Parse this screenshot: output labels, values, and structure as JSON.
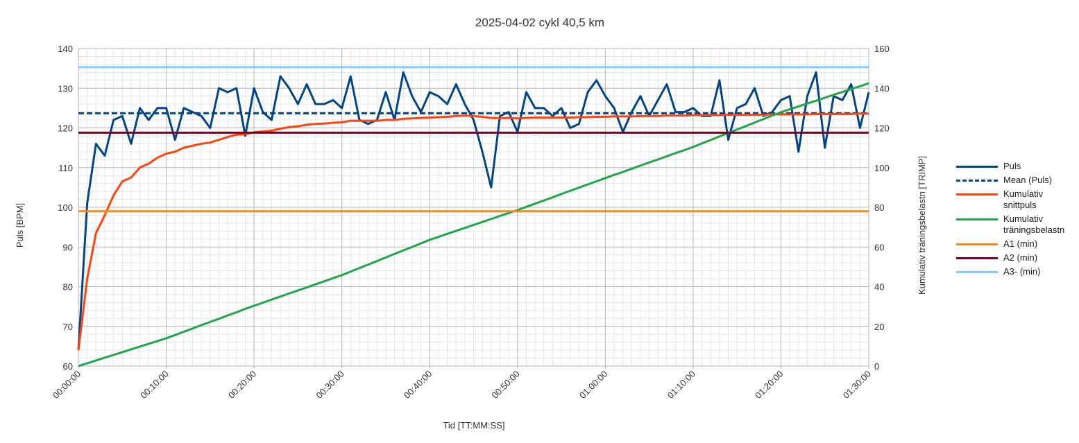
{
  "chart_data": {
    "type": "line",
    "title": "2025-04-02 cykl 40,5 km",
    "xlabel": "Tid [TT:MM:SS]",
    "ylabel": "Puls [BPM]",
    "y2label": "Kumulativ träningsbelastn [TRIMP]",
    "x": [
      0,
      1,
      2,
      3,
      4,
      5,
      6,
      7,
      8,
      9,
      10,
      11,
      12,
      13,
      14,
      15,
      16,
      17,
      18,
      19,
      20,
      21,
      22,
      23,
      24,
      25,
      26,
      27,
      28,
      29,
      30,
      31,
      32,
      33,
      34,
      35,
      36,
      37,
      38,
      39,
      40,
      41,
      42,
      43,
      44,
      45,
      46,
      47,
      48,
      49,
      50,
      51,
      52,
      53,
      54,
      55,
      56,
      57,
      58,
      59,
      60,
      61,
      62,
      63,
      64,
      65,
      66,
      67,
      68,
      69,
      70,
      71,
      72,
      73,
      74,
      75,
      76,
      77,
      78,
      79,
      80,
      81,
      82,
      83,
      84,
      85,
      86,
      87,
      88,
      89,
      90
    ],
    "xlim": [
      0,
      90
    ],
    "xticks": [
      {
        "value": 0,
        "label": "00:00:00"
      },
      {
        "value": 10,
        "label": "00:10:00"
      },
      {
        "value": 20,
        "label": "00:20:00"
      },
      {
        "value": 30,
        "label": "00:30:00"
      },
      {
        "value": 40,
        "label": "00:40:00"
      },
      {
        "value": 50,
        "label": "00:50:00"
      },
      {
        "value": 60,
        "label": "01:00:00"
      },
      {
        "value": 70,
        "label": "01:10:00"
      },
      {
        "value": 80,
        "label": "01:20:00"
      },
      {
        "value": 90,
        "label": "01:30:00"
      }
    ],
    "ylim": [
      60,
      140
    ],
    "yticks": [
      60,
      70,
      80,
      90,
      100,
      110,
      120,
      130,
      140
    ],
    "y2lim": [
      0,
      160
    ],
    "y2ticks": [
      0,
      20,
      40,
      60,
      80,
      100,
      120,
      140,
      160
    ],
    "grid": true,
    "legend": "right",
    "series": [
      {
        "name": "Puls",
        "color": "#004586",
        "values": [
          64,
          101,
          116,
          113,
          122,
          123,
          116,
          125,
          122,
          125,
          125,
          117,
          125,
          124,
          123,
          120,
          130,
          129,
          130,
          118,
          130,
          124,
          122,
          133,
          130,
          126,
          131,
          126,
          126,
          127,
          125,
          133,
          122,
          121,
          122,
          129,
          122,
          134,
          128,
          124,
          129,
          128,
          126,
          131,
          126,
          122,
          114,
          105,
          123,
          124,
          119,
          129,
          125,
          125,
          123,
          125,
          120,
          121,
          129,
          132,
          128,
          125,
          119,
          124,
          128,
          123,
          127,
          131,
          124,
          124,
          125,
          123,
          123,
          132,
          117,
          125,
          126,
          130,
          123,
          124,
          127,
          128,
          114,
          128,
          134,
          115,
          128,
          127,
          131,
          120,
          129
        ]
      },
      {
        "name": "Mean (Puls)",
        "color": "#004586",
        "dashed": true,
        "value": 123.7
      },
      {
        "name": "Kumulativ snittpuls",
        "color": "#ff420e",
        "values": [
          64,
          82,
          93.5,
          98,
          103,
          106.5,
          107.5,
          110,
          111,
          112.5,
          113.5,
          114,
          115,
          115.5,
          116,
          116.3,
          117,
          117.7,
          118.3,
          118.4,
          118.9,
          119.1,
          119.3,
          119.8,
          120.2,
          120.4,
          120.8,
          121,
          121.1,
          121.3,
          121.4,
          121.8,
          121.8,
          121.8,
          121.8,
          122,
          122,
          122.3,
          122.4,
          122.5,
          122.6,
          122.7,
          122.8,
          123,
          123.1,
          123,
          122.8,
          122.5,
          122.5,
          122.5,
          122.4,
          122.5,
          122.6,
          122.6,
          122.6,
          122.6,
          122.6,
          122.7,
          122.7,
          122.8,
          122.8,
          122.9,
          122.9,
          122.9,
          123,
          123,
          123,
          123.1,
          123.1,
          123.1,
          123.2,
          123.2,
          123.2,
          123.2,
          123.3,
          123.3,
          123.3,
          123.3,
          123.3,
          123.4,
          123.4,
          123.4,
          123.4,
          123.4,
          123.5,
          123.5,
          123.5,
          123.5,
          123.5,
          123.6,
          123.6
        ]
      },
      {
        "name": "Kumulativ träningsbelastn",
        "color": "#1fa54a",
        "axis": "y2",
        "values": [
          0,
          1.4,
          2.8,
          4.2,
          5.6,
          7,
          8.4,
          9.8,
          11.2,
          12.6,
          14,
          15.6,
          17.3,
          18.9,
          20.6,
          22.2,
          23.8,
          25.5,
          27.1,
          28.8,
          30.4,
          31.9,
          33.5,
          35,
          36.6,
          38.1,
          39.6,
          41.2,
          42.7,
          44.3,
          45.8,
          47.6,
          49.4,
          51.1,
          52.9,
          54.7,
          56.5,
          58.3,
          60,
          61.8,
          63.6,
          65.1,
          66.6,
          68.1,
          69.6,
          71.1,
          72.6,
          74.1,
          75.6,
          77.1,
          78.6,
          80.2,
          81.8,
          83.4,
          85,
          86.7,
          88.3,
          89.9,
          91.5,
          93.1,
          94.7,
          96.3,
          97.8,
          99.4,
          101,
          102.6,
          104.1,
          105.7,
          107.3,
          108.8,
          110.4,
          112.2,
          113.9,
          115.7,
          117.4,
          119.2,
          120.9,
          122.7,
          124.4,
          126.2,
          127.9,
          129.4,
          130.8,
          132.3,
          133.7,
          135.2,
          136.7,
          138.1,
          139.6,
          141,
          142.5
        ]
      },
      {
        "name": "A1 (min)",
        "color": "#f0891e",
        "value": 99
      },
      {
        "name": "A2 (min)",
        "color": "#7e0021",
        "value": 118.8
      },
      {
        "name": "A3- (min)",
        "color": "#83caff",
        "value": 135.3
      }
    ]
  }
}
